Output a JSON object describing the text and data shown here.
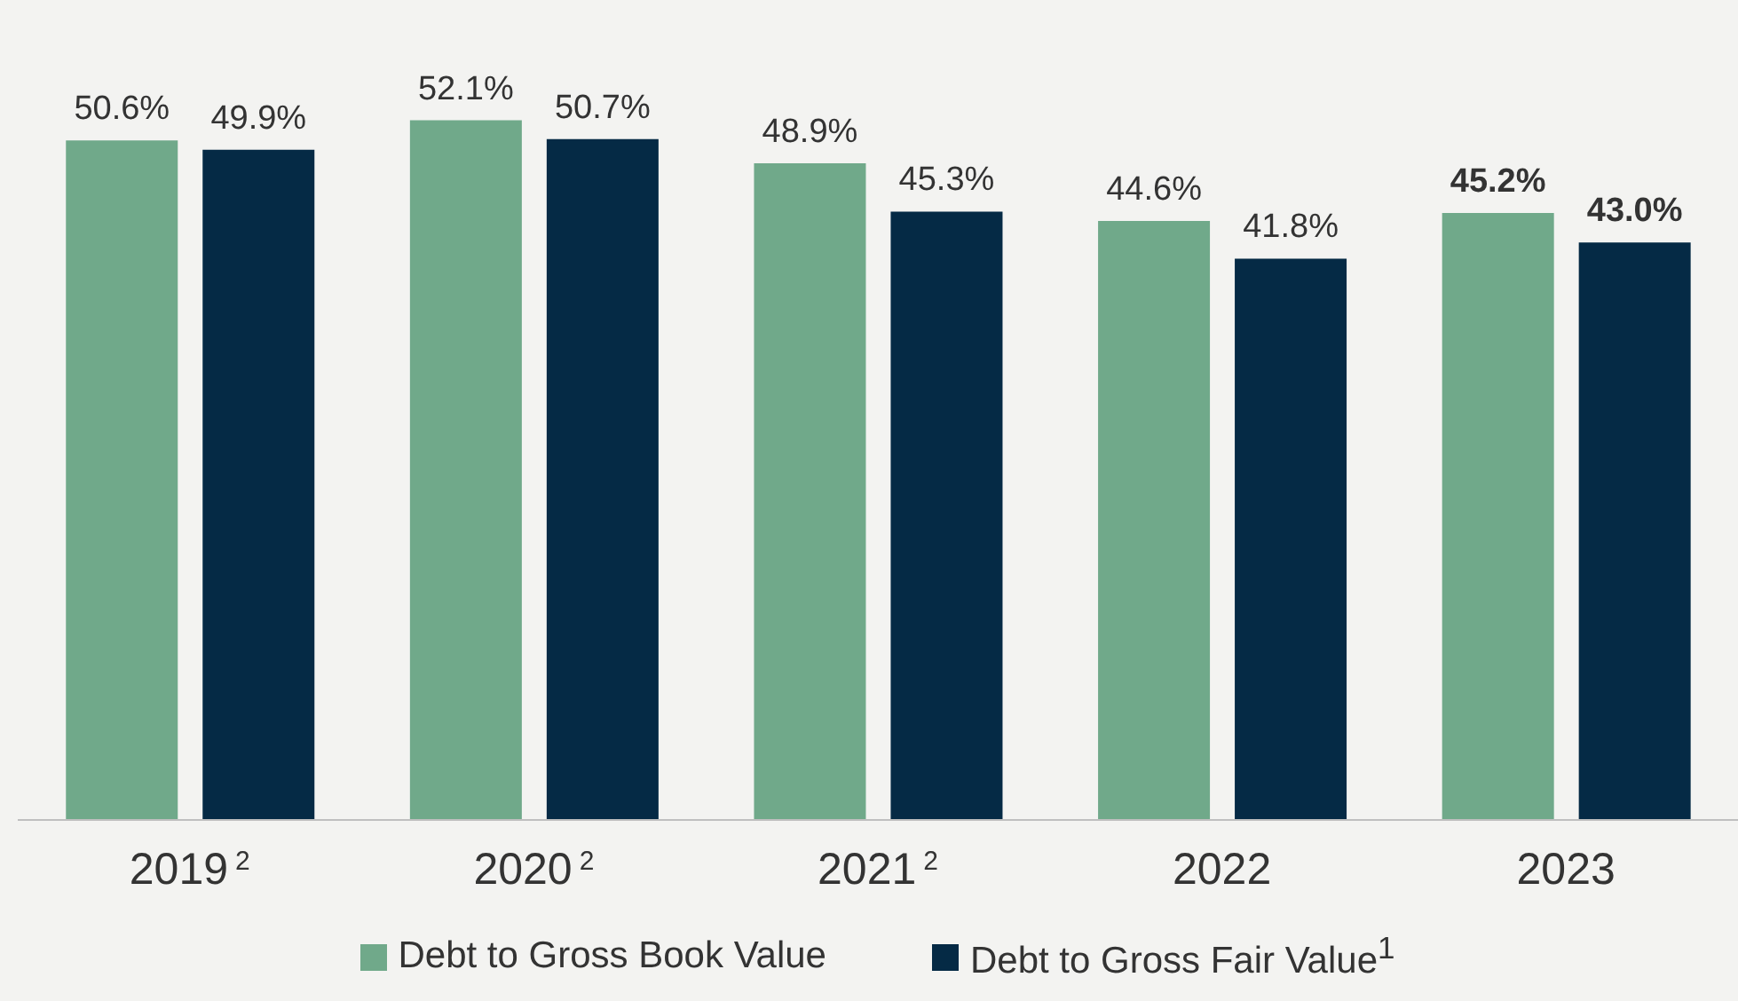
{
  "chart_data": {
    "type": "bar",
    "categories": [
      "2019$^{2}$",
      "2020$^{2}$",
      "2021$^{2}$",
      "2022",
      "2023"
    ],
    "series": [
      {
        "name": "Debt to Gross Book Value",
        "color": "#70a98a",
        "values": [
          50.6,
          52.1,
          48.9,
          44.6,
          45.2
        ],
        "value_labels": [
          "50.6%",
          "52.1%",
          "48.9%",
          "44.6%",
          "45.2%"
        ]
      },
      {
        "name": "Debt to Gross Fair Value$^{1}$",
        "color": "#052a45",
        "values": [
          49.9,
          50.7,
          45.3,
          41.8,
          43.0
        ],
        "value_labels": [
          "49.9%",
          "50.7%",
          "45.3%",
          "41.8%",
          "43.0%"
        ]
      }
    ],
    "tick_labels": "x",
    "grid": false,
    "legend": "bottom"
  }
}
